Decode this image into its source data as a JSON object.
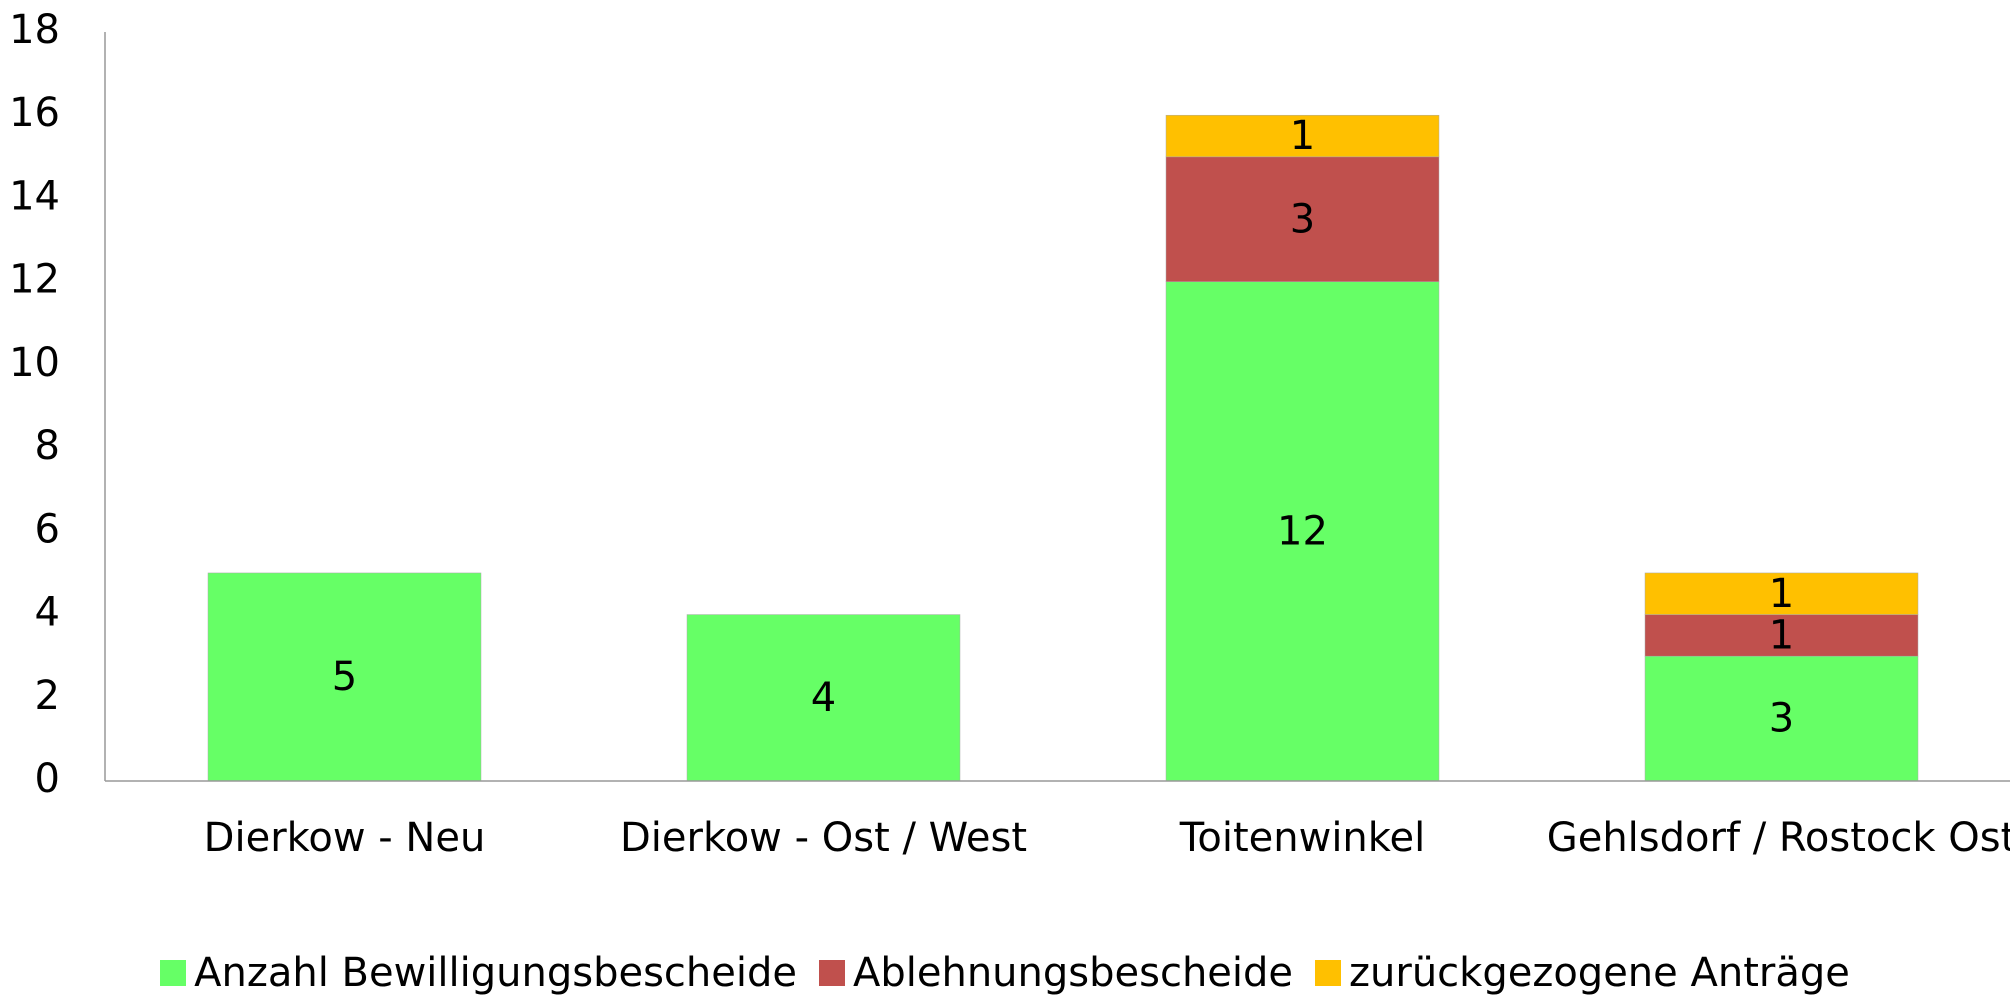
{
  "chart_data": {
    "type": "stacked_bar",
    "categories": [
      "Dierkow - Neu",
      "Dierkow - Ost / West",
      "Toitenwinkel",
      "Gehlsdorf / Rostock Ost"
    ],
    "series": [
      {
        "name": "Anzahl Bewilligungsbescheide",
        "color": "#66ff66",
        "values": [
          5,
          4,
          12,
          3
        ]
      },
      {
        "name": "Ablehnungsbescheide",
        "color": "#c0504d",
        "values": [
          null,
          null,
          3,
          1
        ]
      },
      {
        "name": "zurückgezogene Anträge",
        "color": "#ffc000",
        "values": [
          null,
          null,
          1,
          1
        ]
      }
    ],
    "ylim": [
      0,
      18
    ],
    "yticks": [
      0,
      2,
      4,
      6,
      8,
      10,
      12,
      14,
      16,
      18
    ],
    "grid": false,
    "legend": "bottom"
  }
}
